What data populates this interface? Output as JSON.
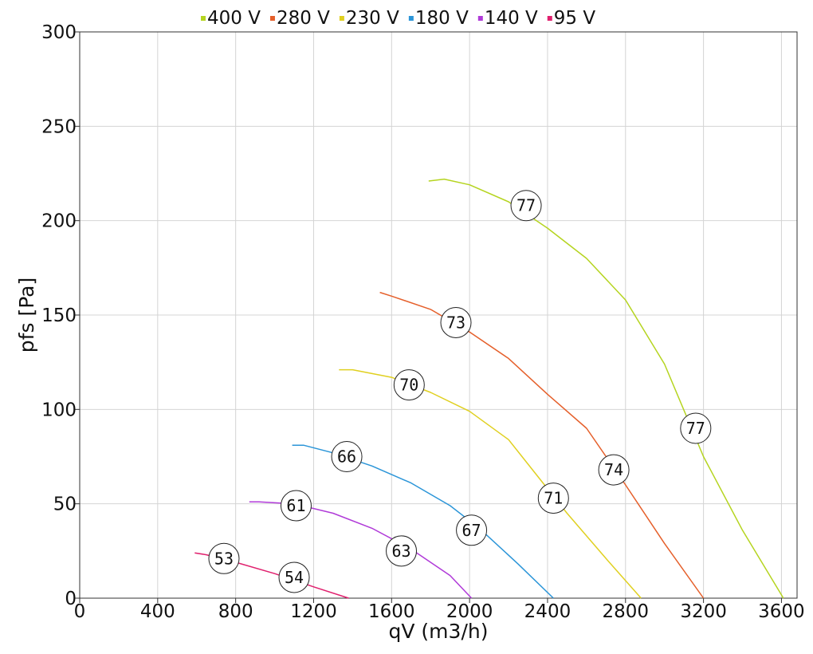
{
  "chart_data": {
    "type": "line",
    "xlabel": "qV (m3/h)",
    "ylabel": "pfs [Pa]",
    "xlim": [
      0,
      3680
    ],
    "ylim": [
      0,
      300
    ],
    "x_ticks": [
      "0",
      "400",
      "800",
      "1200",
      "1600",
      "2000",
      "2400",
      "2800",
      "3200",
      "3600"
    ],
    "y_ticks": [
      "0",
      "50",
      "100",
      "150",
      "200",
      "250",
      "300"
    ],
    "grid": true,
    "legend_position": "top",
    "series": [
      {
        "name": "400 V",
        "color": "#b5d41f",
        "points": [
          [
            1790,
            221
          ],
          [
            1870,
            222
          ],
          [
            2000,
            219
          ],
          [
            2200,
            210
          ],
          [
            2400,
            196
          ],
          [
            2600,
            180
          ],
          [
            2800,
            158
          ],
          [
            3000,
            124
          ],
          [
            3200,
            75
          ],
          [
            3400,
            36
          ],
          [
            3610,
            0
          ]
        ],
        "markers": [
          {
            "x": 2290,
            "y": 208,
            "label": "77"
          },
          {
            "x": 3160,
            "y": 90,
            "label": "77"
          }
        ]
      },
      {
        "name": "280 V",
        "color": "#e55f2a",
        "points": [
          [
            1540,
            162
          ],
          [
            1600,
            160
          ],
          [
            1800,
            153
          ],
          [
            2000,
            141
          ],
          [
            2200,
            127
          ],
          [
            2400,
            108
          ],
          [
            2600,
            90
          ],
          [
            2800,
            60
          ],
          [
            3000,
            29
          ],
          [
            3200,
            0
          ]
        ],
        "markers": [
          {
            "x": 1930,
            "y": 146,
            "label": "73"
          },
          {
            "x": 2740,
            "y": 68,
            "label": "74"
          }
        ]
      },
      {
        "name": "230 V",
        "color": "#e0d020",
        "points": [
          [
            1330,
            121
          ],
          [
            1400,
            121
          ],
          [
            1600,
            117
          ],
          [
            1800,
            109
          ],
          [
            2000,
            99
          ],
          [
            2200,
            84
          ],
          [
            2300,
            71
          ],
          [
            2500,
            45
          ],
          [
            2700,
            21
          ],
          [
            2880,
            0
          ]
        ],
        "markers": [
          {
            "x": 1690,
            "y": 113,
            "label": "70"
          },
          {
            "x": 2430,
            "y": 53,
            "label": "71"
          }
        ]
      },
      {
        "name": "180 V",
        "color": "#2b95d8",
        "points": [
          [
            1090,
            81
          ],
          [
            1150,
            81
          ],
          [
            1300,
            77
          ],
          [
            1500,
            70
          ],
          [
            1700,
            61
          ],
          [
            1900,
            49
          ],
          [
            2050,
            37
          ],
          [
            2250,
            18
          ],
          [
            2430,
            0
          ]
        ],
        "markers": [
          {
            "x": 1370,
            "y": 75,
            "label": "66"
          },
          {
            "x": 2010,
            "y": 36,
            "label": "67"
          }
        ]
      },
      {
        "name": "140 V",
        "color": "#b03ad8",
        "points": [
          [
            870,
            51
          ],
          [
            920,
            51
          ],
          [
            1100,
            50
          ],
          [
            1300,
            45
          ],
          [
            1500,
            37
          ],
          [
            1700,
            26
          ],
          [
            1900,
            12
          ],
          [
            2010,
            0
          ]
        ],
        "markers": [
          {
            "x": 1110,
            "y": 49,
            "label": "61"
          },
          {
            "x": 1650,
            "y": 25,
            "label": "63"
          }
        ]
      },
      {
        "name": "95 V",
        "color": "#e0206e",
        "points": [
          [
            590,
            24
          ],
          [
            650,
            23
          ],
          [
            800,
            19
          ],
          [
            1000,
            13
          ],
          [
            1200,
            6
          ],
          [
            1380,
            0
          ]
        ],
        "markers": [
          {
            "x": 740,
            "y": 21,
            "label": "53"
          },
          {
            "x": 1100,
            "y": 11,
            "label": "54"
          }
        ]
      }
    ]
  }
}
